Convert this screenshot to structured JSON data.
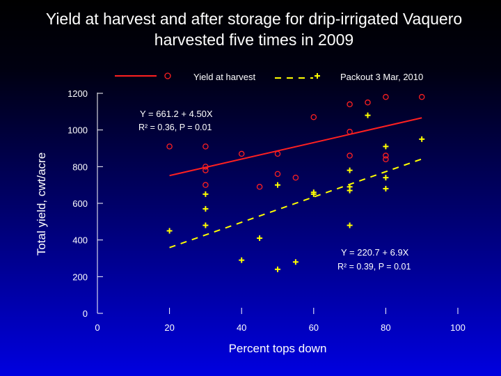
{
  "chart_data": {
    "type": "scatter",
    "title_line1": "Yield at harvest and after storage for drip-irrigated Vaquero",
    "title_line2": "harvested five times in 2009",
    "xlabel": "Percent  tops  down",
    "ylabel": "Total yield, cwt/acre",
    "xlim": [
      0,
      100
    ],
    "ylim": [
      0,
      1200
    ],
    "x_ticks": [
      0,
      20,
      40,
      60,
      80,
      100
    ],
    "y_ticks": [
      0,
      200,
      400,
      600,
      800,
      1000,
      1200
    ],
    "x_tick_labels": [
      "0",
      "20",
      "40",
      "60",
      "80",
      "100"
    ],
    "y_tick_labels": [
      "0",
      "200",
      "400",
      "600",
      "800",
      "1000",
      "1200"
    ],
    "legend": {
      "position": "top",
      "harvest_label": "Yield at harvest",
      "packout_label": "Packout 3 Mar, 2010"
    },
    "series": [
      {
        "name": "Yield at harvest",
        "marker": "circle",
        "color": "#ff2020",
        "points": [
          [
            20,
            910
          ],
          [
            30,
            910
          ],
          [
            30,
            800
          ],
          [
            30,
            780
          ],
          [
            30,
            700
          ],
          [
            40,
            870
          ],
          [
            45,
            690
          ],
          [
            50,
            870
          ],
          [
            50,
            760
          ],
          [
            55,
            740
          ],
          [
            60,
            1070
          ],
          [
            70,
            1140
          ],
          [
            70,
            990
          ],
          [
            70,
            860
          ],
          [
            75,
            1150
          ],
          [
            80,
            1180
          ],
          [
            80,
            860
          ],
          [
            80,
            840
          ],
          [
            90,
            1180
          ]
        ],
        "fit": {
          "intercept": 661.2,
          "slope": 4.5,
          "x_range": [
            20,
            90
          ]
        },
        "equation": "Y = 661.2 + 4.50X",
        "stats": "R² = 0.36, P = 0.01"
      },
      {
        "name": "Packout 3 Mar, 2010",
        "marker": "plus",
        "color": "#ffff00",
        "points": [
          [
            20,
            450
          ],
          [
            30,
            650
          ],
          [
            30,
            570
          ],
          [
            30,
            480
          ],
          [
            40,
            290
          ],
          [
            45,
            410
          ],
          [
            50,
            700
          ],
          [
            50,
            240
          ],
          [
            55,
            280
          ],
          [
            60,
            660
          ],
          [
            60,
            650
          ],
          [
            70,
            780
          ],
          [
            70,
            690
          ],
          [
            70,
            670
          ],
          [
            70,
            480
          ],
          [
            75,
            1080
          ],
          [
            80,
            910
          ],
          [
            80,
            740
          ],
          [
            80,
            680
          ],
          [
            90,
            950
          ]
        ],
        "fit": {
          "intercept": 220.7,
          "slope": 6.9,
          "x_range": [
            20,
            90
          ]
        },
        "equation": "Y = 220.7 + 6.9X",
        "stats": "R² = 0.39, P = 0.01"
      }
    ]
  },
  "colors": {
    "harvest": "#ff2020",
    "packout": "#ffff00",
    "text": "#ffffff"
  }
}
